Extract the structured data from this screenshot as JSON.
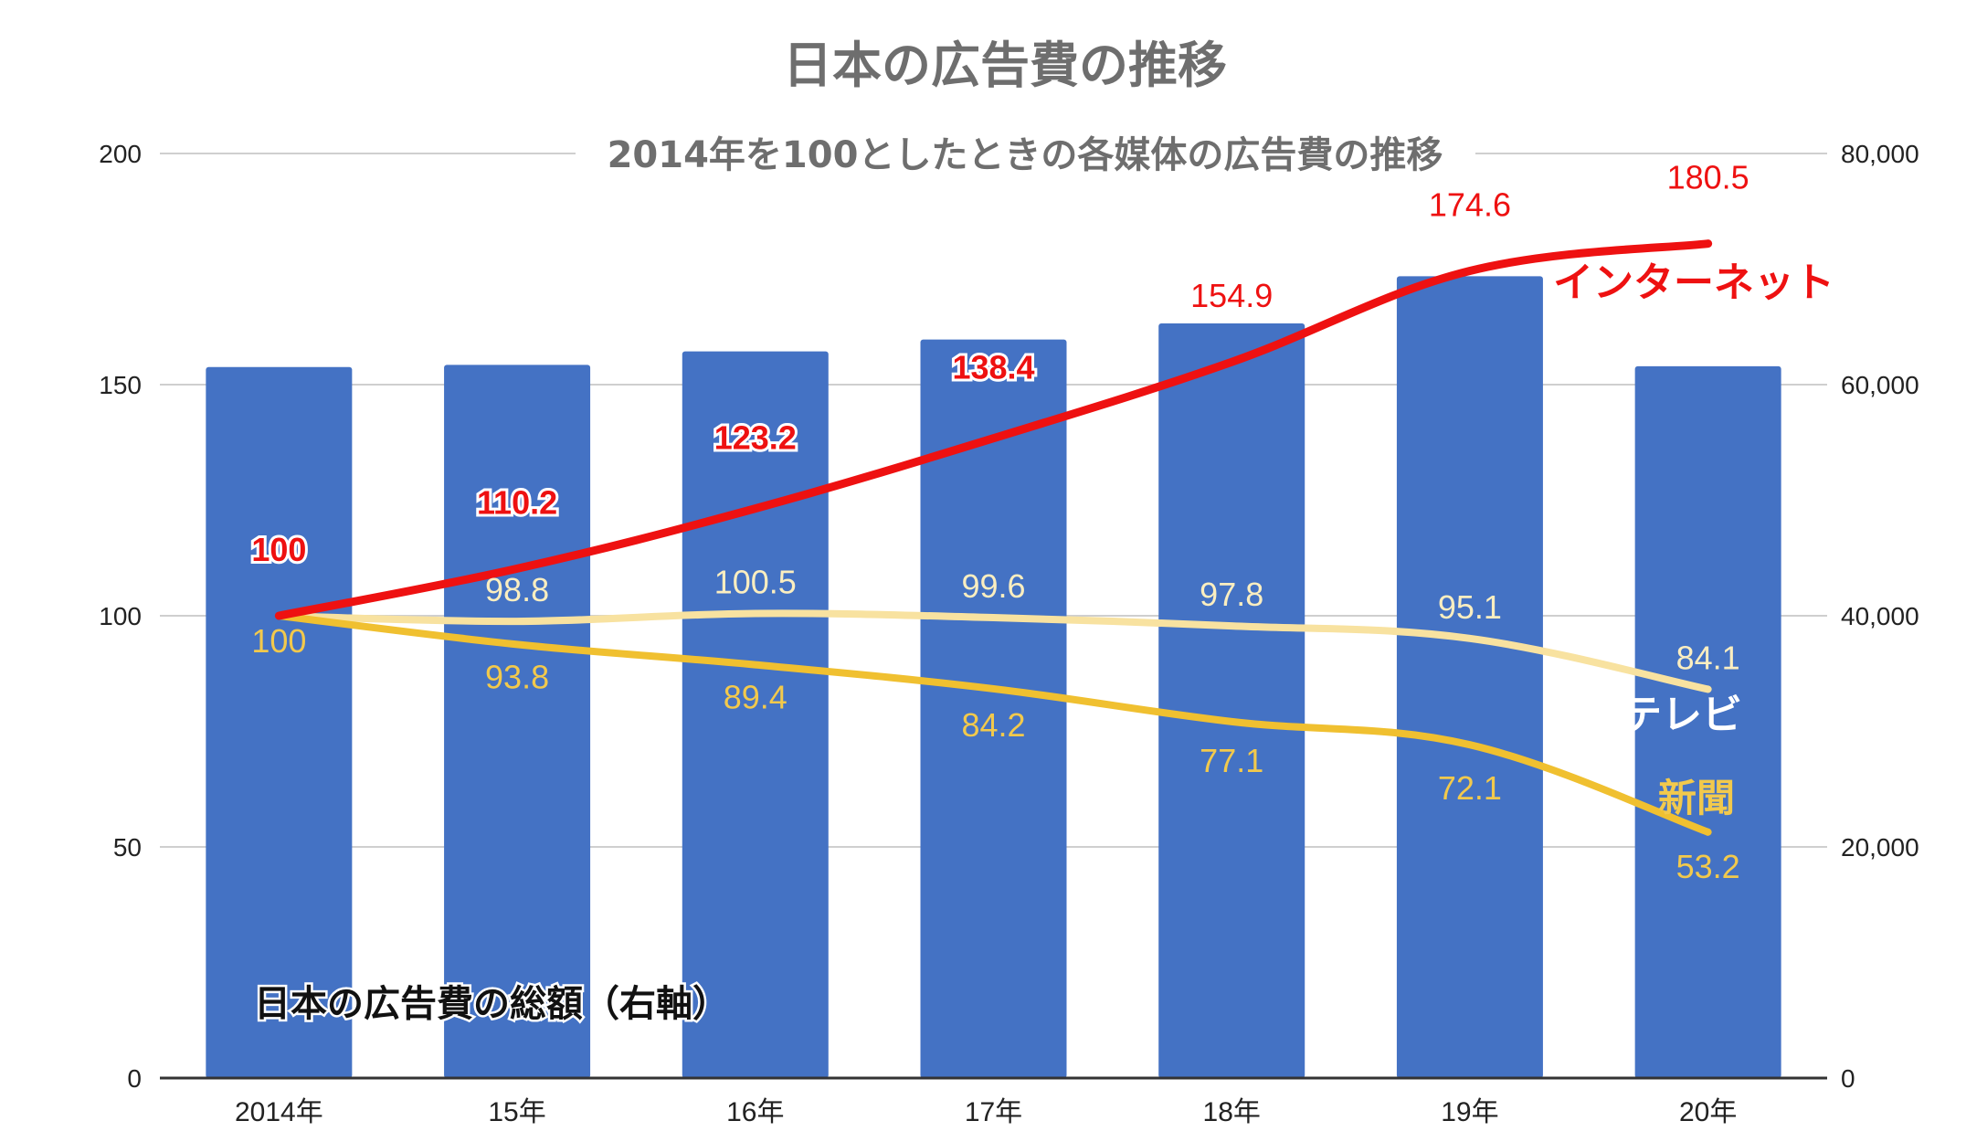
{
  "chart_data": {
    "type": "bar",
    "title": "日本の広告費の推移",
    "subtitle": "2014年を100としたときの各媒体の広告費の推移",
    "categories": [
      "2014年",
      "15年",
      "16年",
      "17年",
      "18年",
      "19年",
      "20年"
    ],
    "left_axis": {
      "ylim": [
        0,
        200
      ],
      "ticks": [
        "0",
        "50",
        "100",
        "150",
        "200"
      ],
      "tick_values": [
        0,
        50,
        100,
        150,
        200
      ]
    },
    "right_axis": {
      "ylim": [
        0,
        80000
      ],
      "ticks": [
        "0",
        "20,000",
        "40,000",
        "60,000",
        "80,000"
      ],
      "tick_values": [
        0,
        20000,
        40000,
        60000,
        80000
      ]
    },
    "bar_series": {
      "name": "日本の広告費の総額（右軸）",
      "axis": "right",
      "values": [
        61522,
        61710,
        62880,
        63907,
        65300,
        69381,
        61594
      ],
      "color": "#4472c4"
    },
    "series": [
      {
        "name": "インターネット",
        "axis": "left",
        "values": [
          100,
          110.2,
          123.2,
          138.4,
          154.9,
          174.6,
          180.5
        ],
        "labels": [
          "100",
          "110.2",
          "123.2",
          "138.4",
          "154.9",
          "174.6",
          "180.5"
        ],
        "color": "#ee1111"
      },
      {
        "name": "テレビ",
        "axis": "left",
        "values": [
          100,
          98.8,
          100.5,
          99.6,
          97.8,
          95.1,
          84.1
        ],
        "labels": [
          "",
          "98.8",
          "100.5",
          "99.6",
          "97.8",
          "95.1",
          "84.1"
        ],
        "color": "#f8e2a0",
        "label_color": "#fbeec0"
      },
      {
        "name": "新聞",
        "axis": "left",
        "values": [
          100,
          93.8,
          89.4,
          84.2,
          77.1,
          72.1,
          53.2
        ],
        "labels": [
          "100",
          "93.8",
          "89.4",
          "84.2",
          "77.1",
          "72.1",
          "53.2"
        ],
        "color": "#f0c030",
        "label_color": "#f2c94c"
      }
    ],
    "grid": true
  }
}
